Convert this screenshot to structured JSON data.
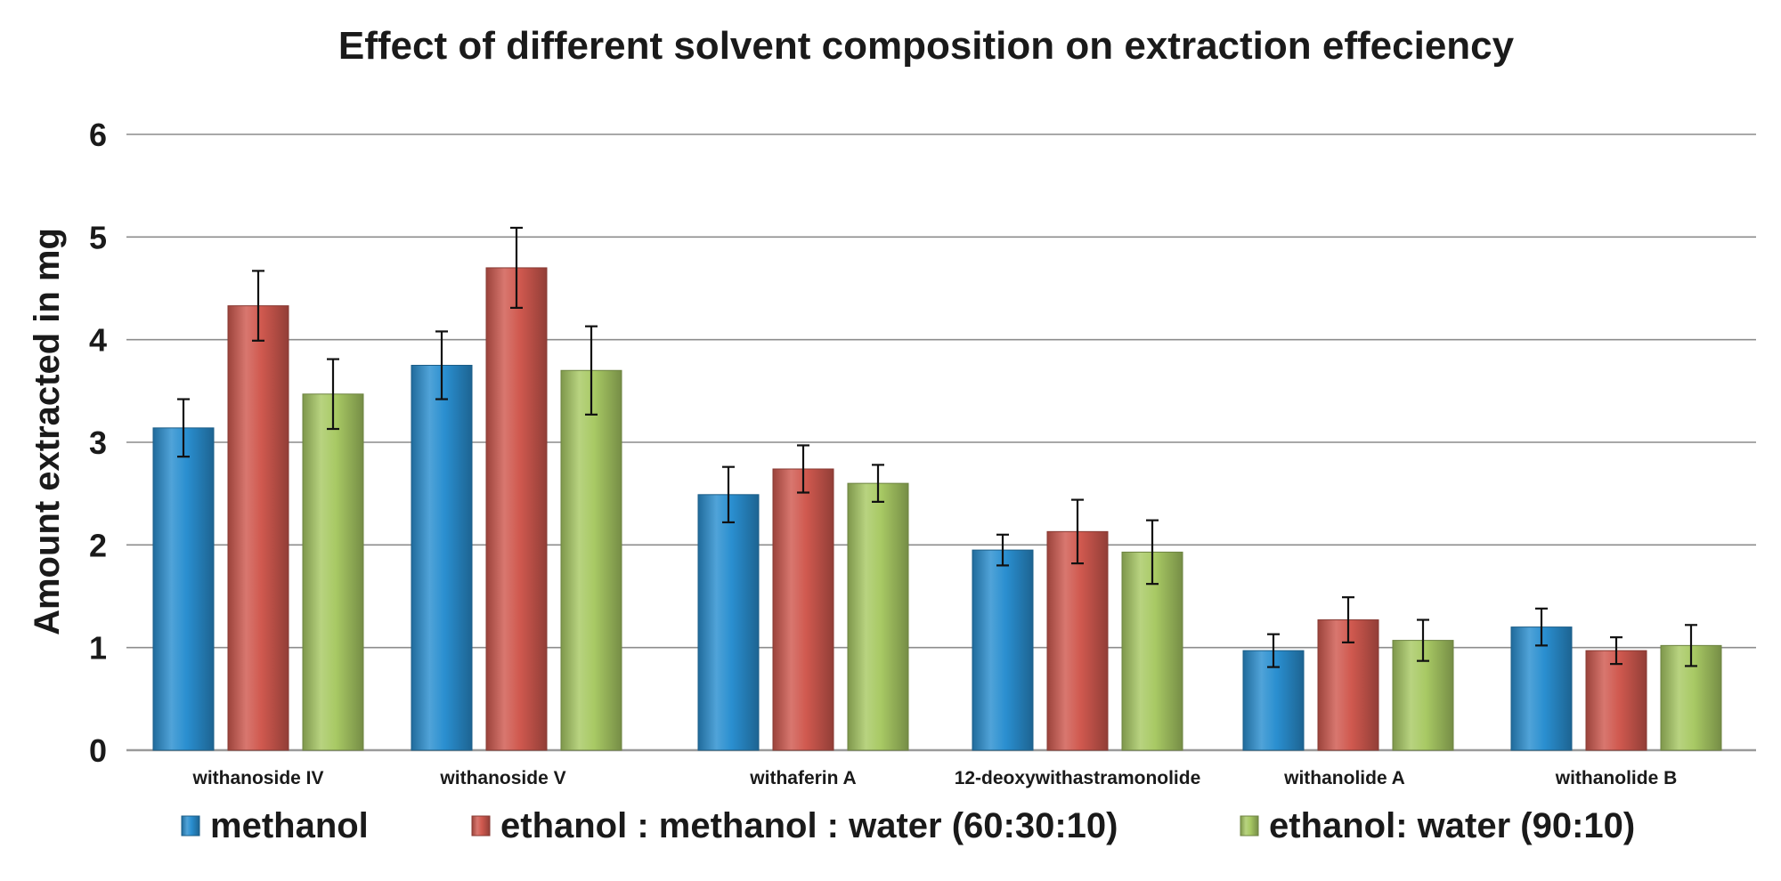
{
  "chart_data": {
    "type": "bar",
    "title": "Effect of different solvent composition on extraction effeciency",
    "xlabel": "",
    "ylabel": "Amount extracted in mg",
    "ylim": [
      0,
      6
    ],
    "yticks": [
      "0",
      "1",
      "2",
      "3",
      "4",
      "5",
      "6"
    ],
    "grid": true,
    "legend_position": "bottom",
    "categories": [
      "withanoside IV",
      "withanoside V",
      "withaferin A",
      "12-deoxywithastramonolide",
      "withanolide A",
      "withanolide B"
    ],
    "series": [
      {
        "name": "methanol",
        "color": "#2a8fd0",
        "values": [
          3.14,
          3.75,
          2.49,
          1.95,
          0.97,
          1.2
        ],
        "errors": [
          0.28,
          0.33,
          0.27,
          0.15,
          0.16,
          0.18
        ]
      },
      {
        "name": "ethanol : methanol : water (60:30:10)",
        "color": "#d0594f",
        "values": [
          4.33,
          4.7,
          2.74,
          2.13,
          1.27,
          0.97
        ],
        "errors": [
          0.34,
          0.39,
          0.23,
          0.31,
          0.22,
          0.13
        ]
      },
      {
        "name": "ethanol: water (90:10)",
        "color": "#a8c964",
        "values": [
          3.47,
          3.7,
          2.6,
          1.93,
          1.07,
          1.02
        ],
        "errors": [
          0.34,
          0.43,
          0.18,
          0.31,
          0.2,
          0.2
        ]
      }
    ]
  }
}
